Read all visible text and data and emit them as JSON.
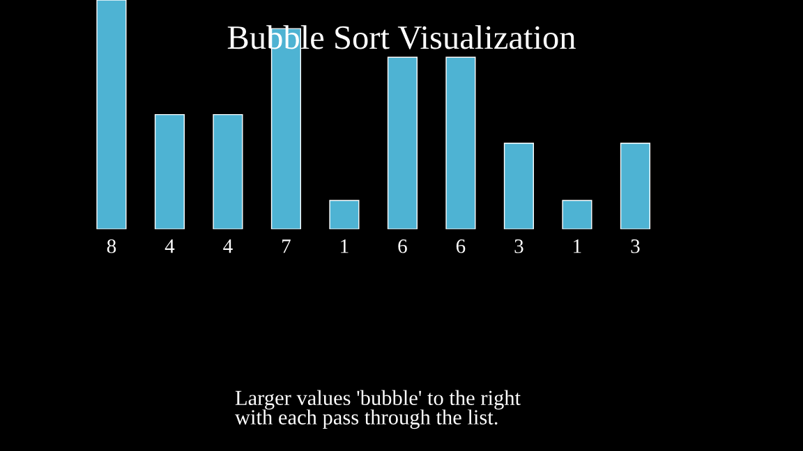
{
  "chart_data": {
    "type": "bar",
    "title": "Bubble Sort Visualization",
    "categories": [
      null,
      null,
      null,
      null,
      null,
      null,
      null,
      null,
      null,
      null
    ],
    "values": [
      8,
      4,
      4,
      7,
      1,
      6,
      6,
      3,
      1,
      3
    ],
    "color": "#4eb3d3",
    "data_labels": true,
    "grid": false,
    "annotations": [
      "Larger values 'bubble' to the right\nwith each pass through the list."
    ]
  }
}
